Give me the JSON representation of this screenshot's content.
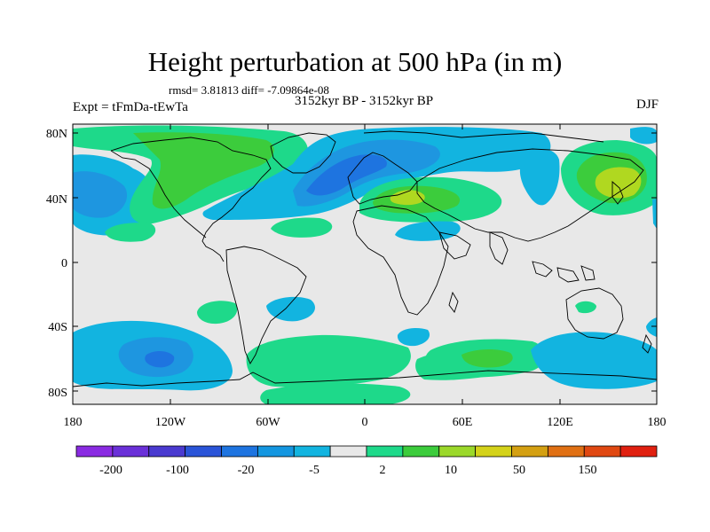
{
  "title": "Height perturbation at 500 hPa (in m)",
  "stats": "rmsd= 3.81813 diff= -7.09864e-08",
  "subtitle": "3152kyr BP - 3152kyr BP",
  "experiment": "Expt = tFmDa-tEwTa",
  "season": "DJF",
  "lat_ticks": [
    "80N",
    "40N",
    "0",
    "40S",
    "80S"
  ],
  "lon_ticks": [
    "180",
    "120W",
    "60W",
    "0",
    "60E",
    "120E",
    "180"
  ],
  "colorbar": {
    "labels": [
      "-200",
      "-100",
      "-20",
      "-5",
      "2",
      "10",
      "50",
      "150"
    ],
    "colors": [
      "#8a2be2",
      "#6a30d8",
      "#4a3ad0",
      "#2a54d8",
      "#1e74e0",
      "#1496e0",
      "#12b4e0",
      "#e8e8e8",
      "#1ed98a",
      "#3ccc3c",
      "#9bd82a",
      "#d4d21a",
      "#d4a012",
      "#e07014",
      "#e04812",
      "#e02010"
    ]
  },
  "palette": {
    "background": "#e8e8e8",
    "neg_light": "#12b4e0",
    "neg_mid": "#1e96e0",
    "neg_dark": "#1e74e0",
    "pos_light": "#1ed98a",
    "pos_mid": "#3ccc3c",
    "pos_strong": "#b0d820"
  }
}
